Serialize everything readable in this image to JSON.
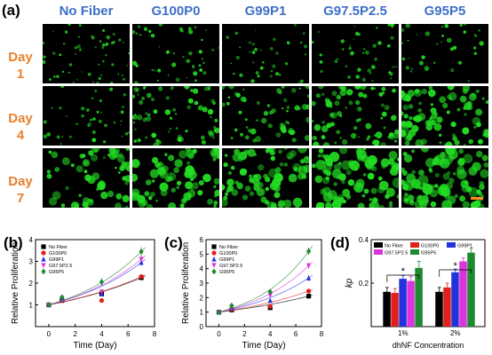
{
  "panel_labels": {
    "a": "(a)",
    "b": "(b)",
    "c": "(c)",
    "d": "(d)"
  },
  "columns": [
    "No Fiber",
    "G100P0",
    "G99P1",
    "G97.5P2.5",
    "G95P5"
  ],
  "rows": [
    {
      "line1": "Day",
      "line2": "1"
    },
    {
      "line1": "Day",
      "line2": "4"
    },
    {
      "line1": "Day",
      "line2": "7"
    }
  ],
  "colors": {
    "header_blue": "#3d6fc8",
    "day_orange": "#e8812e",
    "cells": "#22dd22",
    "scale_bar": "#ff8c1a"
  },
  "chart_data": [
    {
      "type": "scatter",
      "id": "b",
      "xlabel": "Time (Day)",
      "ylabel": "Relative Proliferation",
      "xlim": [
        -1,
        8
      ],
      "ylim": [
        0,
        4
      ],
      "xticks": [
        0,
        2,
        4,
        6,
        8
      ],
      "yticks": [
        1,
        2,
        3,
        4
      ],
      "legend": "top-left",
      "series": [
        {
          "name": "No Fiber",
          "color": "#000000",
          "marker": "square",
          "x": [
            0,
            1,
            4,
            7
          ],
          "y": [
            1.0,
            1.2,
            1.5,
            2.25
          ],
          "err": [
            0.05,
            0.06,
            0.1,
            0.12
          ]
        },
        {
          "name": "G100P0",
          "color": "#e0201b",
          "marker": "circle",
          "x": [
            0,
            1,
            4,
            7
          ],
          "y": [
            1.0,
            1.2,
            1.2,
            2.3
          ],
          "err": [
            0.05,
            0.05,
            0.08,
            0.1
          ]
        },
        {
          "name": "G99P1",
          "color": "#2233dd",
          "marker": "triangle",
          "x": [
            0,
            1,
            4,
            7
          ],
          "y": [
            1.0,
            1.3,
            1.5,
            2.95
          ],
          "err": [
            0.05,
            0.06,
            0.1,
            0.15
          ]
        },
        {
          "name": "G97.5P2.5",
          "color": "#dd33dd",
          "marker": "triangle-down",
          "x": [
            0,
            1,
            4,
            7
          ],
          "y": [
            1.0,
            1.3,
            1.6,
            3.1
          ],
          "err": [
            0.05,
            0.06,
            0.1,
            0.15
          ]
        },
        {
          "name": "G95P5",
          "color": "#1e8a2e",
          "marker": "diamond",
          "x": [
            0,
            1,
            4,
            7
          ],
          "y": [
            1.0,
            1.35,
            2.05,
            3.45
          ],
          "err": [
            0.05,
            0.08,
            0.18,
            0.2
          ]
        }
      ]
    },
    {
      "type": "scatter",
      "id": "c",
      "xlabel": "Time (Day)",
      "ylabel": "Relative Proliferation",
      "xlim": [
        -1,
        8
      ],
      "ylim": [
        0,
        6
      ],
      "xticks": [
        0,
        2,
        4,
        6,
        8
      ],
      "yticks": [
        0,
        1,
        2,
        3,
        4,
        5,
        6
      ],
      "legend": "top-left",
      "series": [
        {
          "name": "No Fiber",
          "color": "#000000",
          "marker": "square",
          "x": [
            0,
            1,
            4,
            7
          ],
          "y": [
            1.0,
            1.15,
            1.3,
            2.1
          ],
          "err": [
            0.05,
            0.05,
            0.08,
            0.12
          ]
        },
        {
          "name": "G100P0",
          "color": "#e0201b",
          "marker": "circle",
          "x": [
            0,
            1,
            4,
            7
          ],
          "y": [
            1.0,
            1.2,
            1.4,
            2.45
          ],
          "err": [
            0.05,
            0.06,
            0.08,
            0.15
          ]
        },
        {
          "name": "G99P1",
          "color": "#2233dd",
          "marker": "triangle",
          "x": [
            0,
            1,
            4,
            7
          ],
          "y": [
            1.0,
            1.3,
            1.8,
            3.35
          ],
          "err": [
            0.05,
            0.06,
            0.1,
            0.2
          ]
        },
        {
          "name": "G97.5P2.5",
          "color": "#dd33dd",
          "marker": "triangle-down",
          "x": [
            0,
            1,
            4,
            7
          ],
          "y": [
            1.0,
            1.35,
            2.15,
            4.2
          ],
          "err": [
            0.05,
            0.07,
            0.12,
            0.2
          ]
        },
        {
          "name": "G95P5",
          "color": "#1e8a2e",
          "marker": "diamond",
          "x": [
            0,
            1,
            4,
            7
          ],
          "y": [
            1.0,
            1.45,
            2.4,
            5.2
          ],
          "err": [
            0.05,
            0.08,
            0.15,
            0.25
          ]
        }
      ]
    },
    {
      "type": "bar",
      "id": "d",
      "xlabel": "dhNF Concentration",
      "ylabel": "kp",
      "ylim": [
        0,
        0.4
      ],
      "yticks": [
        0.2,
        0.4
      ],
      "categories": [
        "1%",
        "2%"
      ],
      "legend": "top",
      "annotations": [
        "*",
        "*"
      ],
      "series": [
        {
          "name": "No Fiber",
          "color": "#000000",
          "values": [
            0.16,
            0.16
          ],
          "err": [
            0.02,
            0.02
          ]
        },
        {
          "name": "G100P0",
          "color": "#e0201b",
          "values": [
            0.155,
            0.18
          ],
          "err": [
            0.02,
            0.02
          ]
        },
        {
          "name": "G99P1",
          "color": "#2233dd",
          "values": [
            0.22,
            0.25
          ],
          "err": [
            0.015,
            0.015
          ]
        },
        {
          "name": "G97.5P2.5",
          "color": "#dd33dd",
          "values": [
            0.21,
            0.3
          ],
          "err": [
            0.02,
            0.015
          ]
        },
        {
          "name": "G95P5",
          "color": "#1e8a2e",
          "values": [
            0.27,
            0.34
          ],
          "err": [
            0.03,
            0.02
          ]
        }
      ]
    }
  ]
}
